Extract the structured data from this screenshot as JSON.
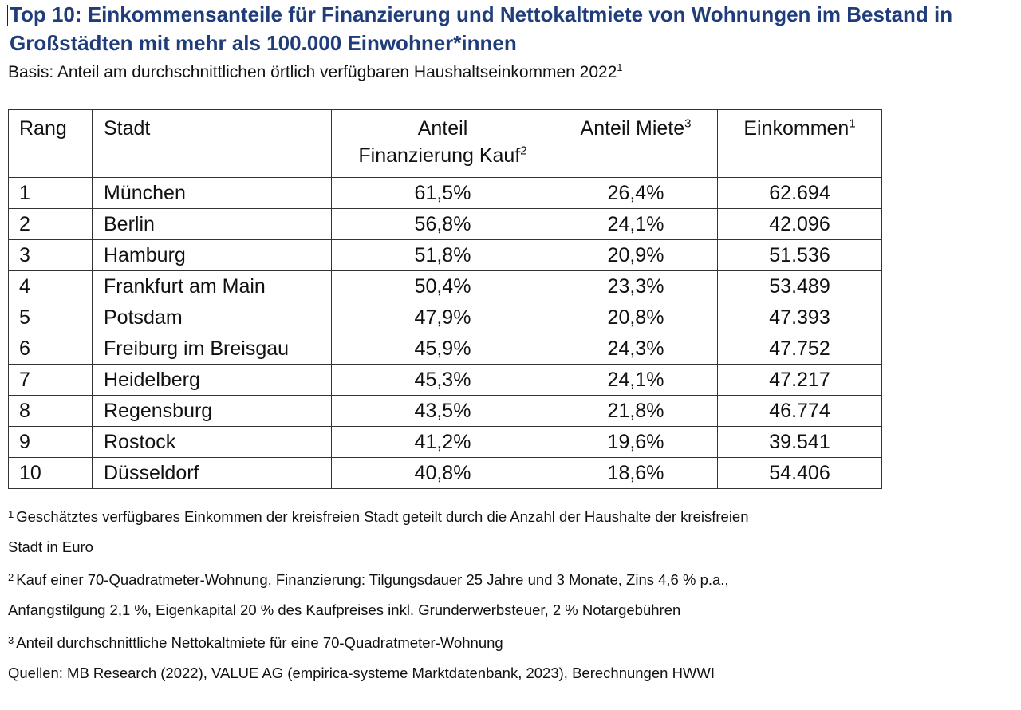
{
  "title": "Top 10: Einkommensanteile für Finanzierung und Nettokaltmiete von Wohnungen im Bestand in Großstädten mit mehr als 100.000 Einwohner*innen",
  "subtitle": {
    "text": "Basis: Anteil am durchschnittlichen örtlich verfügbaren Haushaltseinkommen 2022",
    "sup": "1"
  },
  "table": {
    "headers": {
      "rank": "Rang",
      "city": "Stadt",
      "financing_line1": "Anteil",
      "financing_line2": "Finanzierung Kauf",
      "financing_sup": "2",
      "rent": "Anteil Miete",
      "rent_sup": "3",
      "income": "Einkommen",
      "income_sup": "1"
    },
    "rows": [
      {
        "rank": "1",
        "city": "München",
        "financing": "61,5%",
        "rent": "26,4%",
        "income": "62.694"
      },
      {
        "rank": "2",
        "city": "Berlin",
        "financing": "56,8%",
        "rent": "24,1%",
        "income": "42.096"
      },
      {
        "rank": "3",
        "city": "Hamburg",
        "financing": "51,8%",
        "rent": "20,9%",
        "income": "51.536"
      },
      {
        "rank": "4",
        "city": "Frankfurt am Main",
        "financing": "50,4%",
        "rent": "23,3%",
        "income": "53.489"
      },
      {
        "rank": "5",
        "city": "Potsdam",
        "financing": "47,9%",
        "rent": "20,8%",
        "income": "47.393"
      },
      {
        "rank": "6",
        "city": "Freiburg im Breisgau",
        "financing": "45,9%",
        "rent": "24,3%",
        "income": "47.752"
      },
      {
        "rank": "7",
        "city": "Heidelberg",
        "financing": "45,3%",
        "rent": "24,1%",
        "income": "47.217"
      },
      {
        "rank": "8",
        "city": "Regensburg",
        "financing": "43,5%",
        "rent": "21,8%",
        "income": "46.774"
      },
      {
        "rank": "9",
        "city": "Rostock",
        "financing": "41,2%",
        "rent": "19,6%",
        "income": "39.541"
      },
      {
        "rank": "10",
        "city": "Düsseldorf",
        "financing": "40,8%",
        "rent": "18,6%",
        "income": "54.406"
      }
    ]
  },
  "footnotes": {
    "fn1_sup": "1",
    "fn1_line1": "Geschätztes verfügbares Einkommen der kreisfreien Stadt geteilt durch die Anzahl der Haushalte der kreisfreien",
    "fn1_line2": "Stadt in Euro",
    "fn2_sup": "2",
    "fn2_line1": "Kauf einer 70-Quadratmeter-Wohnung, Finanzierung: Tilgungsdauer 25 Jahre und 3 Monate, Zins 4,6 % p.a.,",
    "fn2_line2": "Anfangstilgung 2,1 %, Eigenkapital 20 % des Kaufpreises inkl. Grunderwerbsteuer, 2 % Notargebühren",
    "fn3_sup": "3",
    "fn3_line1": "Anteil durchschnittliche Nettokaltmiete für eine 70-Quadratmeter-Wohnung",
    "sources": "Quellen: MB Research (2022), VALUE AG (empirica-systeme Marktdatenbank, 2023), Berechnungen HWWI"
  },
  "colors": {
    "title": "#1f3d7a",
    "text": "#111111",
    "border": "#333333"
  }
}
